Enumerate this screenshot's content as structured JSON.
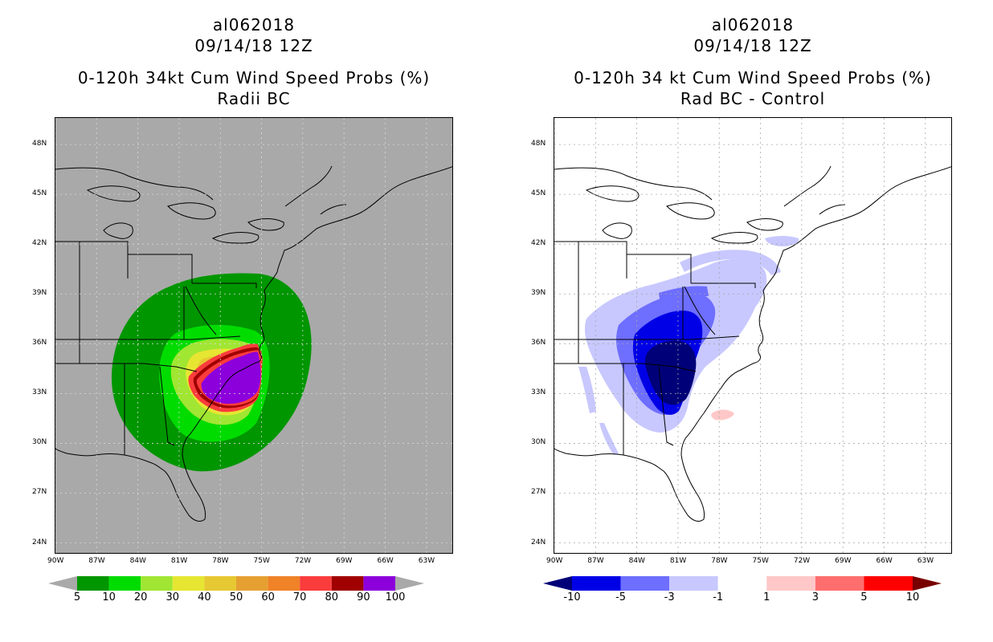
{
  "left_panel": {
    "storm_id": "al062018",
    "date": "09/14/18 12Z",
    "product": "0-120h 34kt Cum Wind Speed Probs (%)",
    "subtitle": "Radii BC",
    "background_color": "#a9a9a9",
    "colorbar": {
      "labels": [
        "5",
        "10",
        "20",
        "30",
        "40",
        "50",
        "60",
        "70",
        "80",
        "90",
        "100"
      ],
      "colors": [
        "#009600",
        "#00dc00",
        "#a0e632",
        "#e6e632",
        "#e6c832",
        "#e6a032",
        "#f08228",
        "#fa3c3c",
        "#a00000",
        "#8c00dc"
      ],
      "under_color": "#a9a9a9",
      "over_color": "#a9a9a9"
    }
  },
  "right_panel": {
    "storm_id": "al062018",
    "date": "09/14/18 12Z",
    "product": "0-120h 34 kt Cum Wind Speed Probs (%)",
    "subtitle": "Rad BC - Control",
    "background_color": "#ffffff",
    "colorbar": {
      "labels": [
        "-10",
        "-5",
        "-3",
        "-1",
        "1",
        "3",
        "5",
        "10"
      ],
      "colors": [
        "#0000e6",
        "#6e6eff",
        "#c8c8ff",
        "#ffffff",
        "#ffc8c8",
        "#ff6e6e",
        "#ff0000"
      ],
      "under_color": "#000078",
      "over_color": "#780000"
    }
  },
  "axes": {
    "lat_labels": [
      "48N",
      "45N",
      "42N",
      "39N",
      "36N",
      "33N",
      "30N",
      "27N",
      "24N"
    ],
    "lon_labels": [
      "90W",
      "87W",
      "84W",
      "81W",
      "78W",
      "75W",
      "72W",
      "69W",
      "66W",
      "63W"
    ],
    "lat_values": [
      48,
      45,
      42,
      39,
      36,
      33,
      30,
      27,
      24
    ],
    "lon_values": [
      -90,
      -87,
      -84,
      -81,
      -78,
      -75,
      -72,
      -69,
      -66,
      -63
    ],
    "lat_range": [
      23.3,
      49.6
    ],
    "lon_range": [
      -90,
      -61
    ]
  }
}
